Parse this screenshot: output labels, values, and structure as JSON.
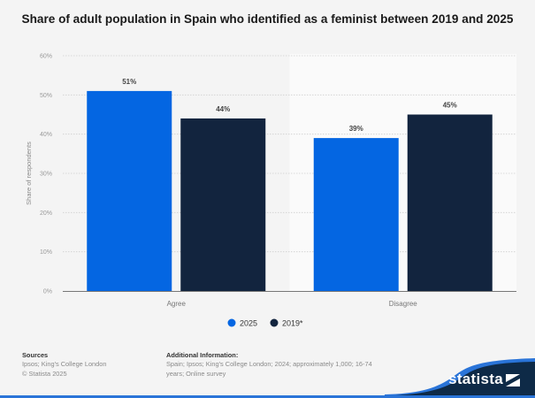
{
  "chart_data": {
    "type": "bar",
    "title": "Share of adult population in Spain who identified as a feminist between 2019 and 2025",
    "xlabel": "",
    "ylabel": "Share of respondents",
    "categories": [
      "Agree",
      "Disagree"
    ],
    "series": [
      {
        "name": "2025",
        "color": "#0466e2",
        "values": [
          51,
          39
        ]
      },
      {
        "name": "2019*",
        "color": "#12243e",
        "values": [
          44,
          45
        ]
      }
    ],
    "value_labels": [
      [
        "51%",
        "39%"
      ],
      [
        "44%",
        "45%"
      ]
    ],
    "ylim": [
      0,
      60
    ],
    "yticks": [
      0,
      10,
      20,
      30,
      40,
      50,
      60
    ],
    "ytick_labels": [
      "0%",
      "10%",
      "20%",
      "30%",
      "40%",
      "50%",
      "60%"
    ],
    "grid": true,
    "legend_position": "bottom-center"
  },
  "footer": {
    "sources_label": "Sources",
    "sources_lines": [
      "Ipsos; King's College London",
      "© Statista 2025"
    ],
    "additional_label": "Additional Information:",
    "additional_lines": [
      "Spain; Ipsos; King's College London; 2024; approximately 1,000; 16-74",
      "years; Online survey"
    ]
  },
  "brand": {
    "name": "statista",
    "logo_icon": "statista-logo-icon",
    "dark_color": "#0e2a47",
    "accent_color": "#2a74d8"
  }
}
